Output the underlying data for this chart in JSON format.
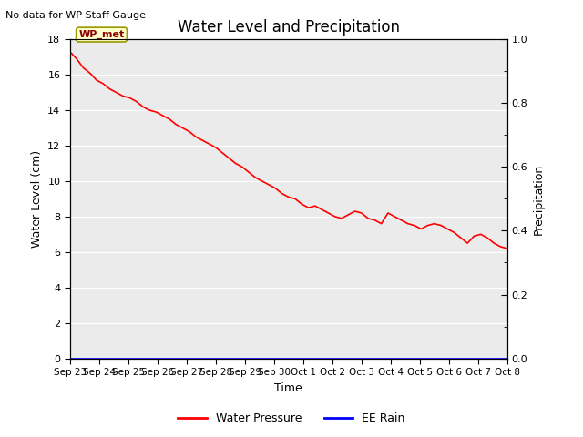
{
  "title": "Water Level and Precipitation",
  "top_left_text": "No data for WP Staff Gauge",
  "annotation_label": "WP_met",
  "xlabel": "Time",
  "ylabel_left": "Water Level (cm)",
  "ylabel_right": "Precipitation",
  "ylim_left": [
    0,
    18
  ],
  "ylim_right": [
    0.0,
    1.0
  ],
  "yticks_left": [
    0,
    2,
    4,
    6,
    8,
    10,
    12,
    14,
    16,
    18
  ],
  "yticks_right_major": [
    0.0,
    0.2,
    0.4,
    0.6,
    0.8,
    1.0
  ],
  "yticks_right_minor": [
    0.1,
    0.3,
    0.5,
    0.7,
    0.9
  ],
  "x_tick_labels": [
    "Sep 23",
    "Sep 24",
    "Sep 25",
    "Sep 26",
    "Sep 27",
    "Sep 28",
    "Sep 29",
    "Sep 30",
    "Oct 1",
    "Oct 2",
    "Oct 3",
    "Oct 4",
    "Oct 5",
    "Oct 6",
    "Oct 7",
    "Oct 8"
  ],
  "legend_water_pressure": "Water Pressure",
  "legend_ee_rain": "EE Rain",
  "water_pressure_color": "#FF0000",
  "ee_rain_color": "#0000FF",
  "background_color": "#E8E8E8",
  "plot_bg_color": "#EBEBEB",
  "water_level_data": [
    17.3,
    16.9,
    16.4,
    16.1,
    15.7,
    15.5,
    15.2,
    15.0,
    14.8,
    14.7,
    14.5,
    14.2,
    14.0,
    13.9,
    13.7,
    13.5,
    13.2,
    13.0,
    12.8,
    12.5,
    12.3,
    12.1,
    11.9,
    11.6,
    11.3,
    11.0,
    10.8,
    10.5,
    10.2,
    10.0,
    9.8,
    9.6,
    9.3,
    9.1,
    9.0,
    8.7,
    8.5,
    8.6,
    8.4,
    8.2,
    8.0,
    7.9,
    8.1,
    8.3,
    8.2,
    7.9,
    7.8,
    7.6,
    8.2,
    8.0,
    7.8,
    7.6,
    7.5,
    7.3,
    7.5,
    7.6,
    7.5,
    7.3,
    7.1,
    6.8,
    6.5,
    6.9,
    7.0,
    6.8,
    6.5,
    6.3,
    6.2
  ],
  "ee_rain_data": [
    0.0,
    0.0,
    0.0,
    0.0,
    0.0,
    0.0,
    0.0,
    0.0,
    0.0,
    0.0,
    0.0,
    0.0,
    0.0,
    0.0,
    0.0,
    0.0,
    0.0,
    0.0,
    0.0,
    0.0,
    0.0,
    0.0,
    0.0,
    0.0,
    0.0,
    0.0,
    0.0,
    0.0,
    0.0,
    0.0,
    0.0,
    0.0,
    0.0,
    0.0,
    0.0,
    0.0,
    0.0,
    0.0,
    0.0,
    0.0,
    0.0,
    0.0,
    0.0,
    0.0,
    0.0,
    0.0,
    0.0,
    0.0,
    0.0,
    0.0,
    0.0,
    0.0,
    0.0,
    0.0,
    0.0,
    0.0,
    0.0,
    0.0,
    0.0,
    0.0,
    0.0,
    0.0,
    0.0,
    0.0,
    0.0,
    0.0,
    0.0
  ],
  "figsize": [
    6.4,
    4.8
  ],
  "dpi": 100,
  "title_fontsize": 12,
  "label_fontsize": 9,
  "tick_fontsize": 8,
  "legend_fontsize": 9
}
